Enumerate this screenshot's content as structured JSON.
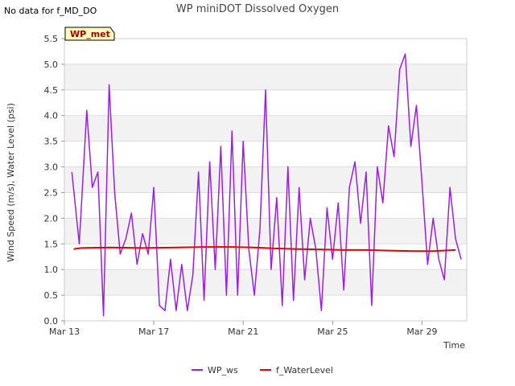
{
  "header": {
    "no_data_note": "No data for f_MD_DO"
  },
  "chart_data": {
    "type": "line",
    "title": "WP miniDOT Dissolved Oxygen",
    "xlabel": "Time",
    "ylabel": "Wind Speed (m/s), Water Level (psi)",
    "xlim": [
      "2023-03-13",
      "2023-03-31"
    ],
    "ylim": [
      0.0,
      5.5
    ],
    "yticks": [
      "0.0",
      "0.5",
      "1.0",
      "1.5",
      "2.0",
      "2.5",
      "3.0",
      "3.5",
      "4.0",
      "4.5",
      "5.0",
      "5.5"
    ],
    "xticks": [
      {
        "label": "Mar 13",
        "date": "2023-03-13"
      },
      {
        "label": "Mar 17",
        "date": "2023-03-17"
      },
      {
        "label": "Mar 21",
        "date": "2023-03-21"
      },
      {
        "label": "Mar 25",
        "date": "2023-03-25"
      },
      {
        "label": "Mar 29",
        "date": "2023-03-29"
      }
    ],
    "grid": true,
    "legend_position": "bottom",
    "station_label": "WP_met",
    "series": [
      {
        "name": "WP_ws",
        "color": "#9a1fe0",
        "x": [
          "2023-03-13T08:00",
          "2023-03-13T16:00",
          "2023-03-14T00:00",
          "2023-03-14T06:00",
          "2023-03-14T12:00",
          "2023-03-14T18:00",
          "2023-03-15T00:00",
          "2023-03-15T06:00",
          "2023-03-15T12:00",
          "2023-03-15T18:00",
          "2023-03-16T00:00",
          "2023-03-16T06:00",
          "2023-03-16T12:00",
          "2023-03-16T18:00",
          "2023-03-17T00:00",
          "2023-03-17T06:00",
          "2023-03-17T12:00",
          "2023-03-17T18:00",
          "2023-03-18T00:00",
          "2023-03-18T06:00",
          "2023-03-18T12:00",
          "2023-03-18T18:00",
          "2023-03-19T00:00",
          "2023-03-19T06:00",
          "2023-03-19T12:00",
          "2023-03-19T18:00",
          "2023-03-20T00:00",
          "2023-03-20T06:00",
          "2023-03-20T12:00",
          "2023-03-20T18:00",
          "2023-03-21T00:00",
          "2023-03-21T06:00",
          "2023-03-21T12:00",
          "2023-03-21T18:00",
          "2023-03-22T00:00",
          "2023-03-22T06:00",
          "2023-03-22T12:00",
          "2023-03-22T18:00",
          "2023-03-23T00:00",
          "2023-03-23T06:00",
          "2023-03-23T12:00",
          "2023-03-23T18:00",
          "2023-03-24T00:00",
          "2023-03-24T06:00",
          "2023-03-24T12:00",
          "2023-03-24T18:00",
          "2023-03-25T00:00",
          "2023-03-25T06:00",
          "2023-03-25T12:00",
          "2023-03-25T18:00",
          "2023-03-26T00:00",
          "2023-03-26T06:00",
          "2023-03-26T12:00",
          "2023-03-26T18:00",
          "2023-03-27T00:00",
          "2023-03-27T06:00",
          "2023-03-27T12:00",
          "2023-03-27T18:00",
          "2023-03-28T00:00",
          "2023-03-28T06:00",
          "2023-03-28T12:00",
          "2023-03-28T18:00",
          "2023-03-29T00:00",
          "2023-03-29T06:00",
          "2023-03-29T12:00",
          "2023-03-29T18:00",
          "2023-03-30T00:00",
          "2023-03-30T06:00",
          "2023-03-30T12:00",
          "2023-03-30T18:00"
        ],
        "values": [
          2.9,
          1.5,
          4.1,
          2.6,
          2.9,
          0.1,
          4.6,
          2.5,
          1.3,
          1.6,
          2.1,
          1.1,
          1.7,
          1.3,
          2.6,
          0.3,
          0.2,
          1.2,
          0.2,
          1.1,
          0.2,
          0.9,
          2.9,
          0.4,
          3.1,
          1.0,
          3.4,
          0.5,
          3.7,
          0.5,
          3.5,
          1.4,
          0.5,
          1.8,
          4.5,
          1.0,
          2.4,
          0.3,
          3.0,
          0.4,
          2.6,
          0.8,
          2.0,
          1.4,
          0.2,
          2.2,
          1.2,
          2.3,
          0.6,
          2.6,
          3.1,
          1.9,
          2.9,
          0.3,
          3.0,
          2.3,
          3.8,
          3.2,
          4.9,
          5.2,
          3.4,
          4.2,
          2.7,
          1.1,
          2.0,
          1.2,
          0.8,
          2.6,
          1.6,
          1.2
        ]
      },
      {
        "name": "f_WaterLevel",
        "color": "#e00000",
        "x": [
          "2023-03-13T10:00",
          "2023-03-13T18:00",
          "2023-03-15T00:00",
          "2023-03-16T12:00",
          "2023-03-18T00:00",
          "2023-03-19T12:00",
          "2023-03-20T12:00",
          "2023-03-21T12:00",
          "2023-03-22T12:00",
          "2023-03-23T12:00",
          "2023-03-24T12:00",
          "2023-03-25T12:00",
          "2023-03-26T12:00",
          "2023-03-27T12:00",
          "2023-03-28T12:00",
          "2023-03-29T12:00",
          "2023-03-30T12:00"
        ],
        "values": [
          1.4,
          1.42,
          1.43,
          1.42,
          1.43,
          1.44,
          1.44,
          1.43,
          1.41,
          1.4,
          1.39,
          1.38,
          1.38,
          1.37,
          1.36,
          1.36,
          1.38
        ]
      }
    ]
  }
}
